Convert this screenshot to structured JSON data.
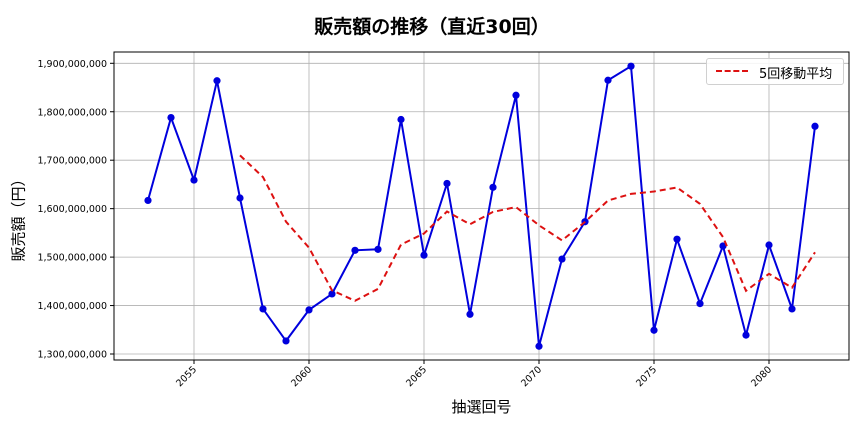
{
  "chart_data": {
    "type": "line",
    "title": "販売額の推移（直近30回）",
    "xlabel": "抽選回号",
    "ylabel": "販売額（円）",
    "x": [
      2053,
      2054,
      2055,
      2056,
      2057,
      2058,
      2059,
      2060,
      2061,
      2062,
      2063,
      2064,
      2065,
      2066,
      2067,
      2068,
      2069,
      2070,
      2071,
      2072,
      2073,
      2074,
      2075,
      2076,
      2077,
      2078,
      2079,
      2080,
      2081,
      2082
    ],
    "series": [
      {
        "name": "販売額",
        "style": "solid-with-markers",
        "color": "#0000dd",
        "values": [
          1617000000,
          1788000000,
          1659000000,
          1864000000,
          1622000000,
          1393000000,
          1327000000,
          1391000000,
          1424000000,
          1514000000,
          1516000000,
          1784000000,
          1504000000,
          1652000000,
          1382000000,
          1644000000,
          1834000000,
          1316000000,
          1496000000,
          1573000000,
          1865000000,
          1894000000,
          1349000000,
          1537000000,
          1404000000,
          1523000000,
          1339000000,
          1525000000,
          1393000000,
          1770000000
        ]
      },
      {
        "name": "5回移動平均",
        "style": "dashed",
        "color": "#dd1111",
        "values": [
          null,
          null,
          null,
          null,
          1710000000,
          1665200000,
          1573000000,
          1519400000,
          1431400000,
          1409800000,
          1434400000,
          1525800000,
          1548800000,
          1594200000,
          1567600000,
          1593200000,
          1603200000,
          1565600000,
          1534400000,
          1572600000,
          1616800000,
          1630400000,
          1635400000,
          1643600000,
          1609800000,
          1541200000,
          1430400000,
          1465600000,
          1436800000,
          1510000000
        ]
      }
    ],
    "xticks": [
      2055,
      2060,
      2065,
      2070,
      2075,
      2080
    ],
    "yticks": [
      1300000000,
      1400000000,
      1500000000,
      1600000000,
      1700000000,
      1800000000,
      1900000000
    ],
    "ytick_labels": [
      "1,300,000,000",
      "1,400,000,000",
      "1,500,000,000",
      "1,600,000,000",
      "1,700,000,000",
      "1,800,000,000",
      "1,900,000,000"
    ],
    "xlim": [
      2051.8,
      2083.2
    ],
    "ylim": [
      1287000000,
      1924000000
    ],
    "grid": true,
    "legend": {
      "position": "upper right",
      "entries": [
        "5回移動平均"
      ]
    }
  },
  "ui": {
    "title": "販売額の推移（直近30回）",
    "xlabel": "抽選回号",
    "ylabel": "販売額（円）",
    "legend_label": "5回移動平均"
  }
}
